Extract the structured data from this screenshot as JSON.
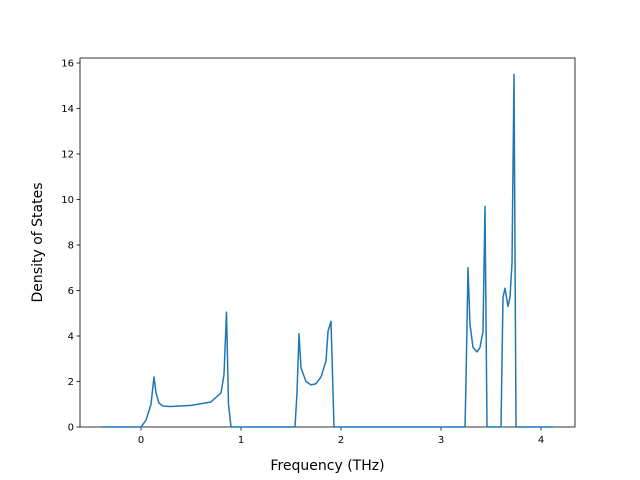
{
  "chart_data": {
    "type": "line",
    "x_label": "Frequency (THz)",
    "y_label": "Density of States",
    "x": [
      -0.39,
      0,
      0.05,
      0.1,
      0.13,
      0.15,
      0.18,
      0.22,
      0.3,
      0.5,
      0.7,
      0.8,
      0.83,
      0.855,
      0.875,
      0.9,
      1.54,
      1.56,
      1.58,
      1.6,
      1.65,
      1.7,
      1.75,
      1.8,
      1.85,
      1.87,
      1.9,
      1.93,
      3.24,
      3.25,
      3.27,
      3.29,
      3.32,
      3.36,
      3.39,
      3.42,
      3.44,
      3.46,
      3.6,
      3.62,
      3.64,
      3.67,
      3.69,
      3.71,
      3.73,
      3.75,
      4.12
    ],
    "series": [
      {
        "color": "#1f77b4",
        "values": [
          0,
          0,
          0.3,
          1.0,
          2.2,
          1.5,
          1.05,
          0.92,
          0.9,
          0.95,
          1.1,
          1.5,
          2.3,
          5.05,
          1.0,
          0,
          0,
          1.5,
          4.1,
          2.6,
          2.0,
          1.85,
          1.9,
          2.2,
          2.9,
          4.2,
          4.65,
          0,
          0,
          2,
          7.0,
          4.5,
          3.5,
          3.3,
          3.5,
          4.2,
          9.7,
          0,
          0,
          5.7,
          6.1,
          5.3,
          5.7,
          7.2,
          15.5,
          0,
          0
        ]
      }
    ],
    "xlim": [
      -0.61,
      4.34
    ],
    "ylim": [
      0,
      16.22
    ],
    "xticks": [
      0,
      1,
      2,
      3,
      4
    ],
    "yticks": [
      0,
      2,
      4,
      6,
      8,
      10,
      12,
      14,
      16
    ]
  }
}
